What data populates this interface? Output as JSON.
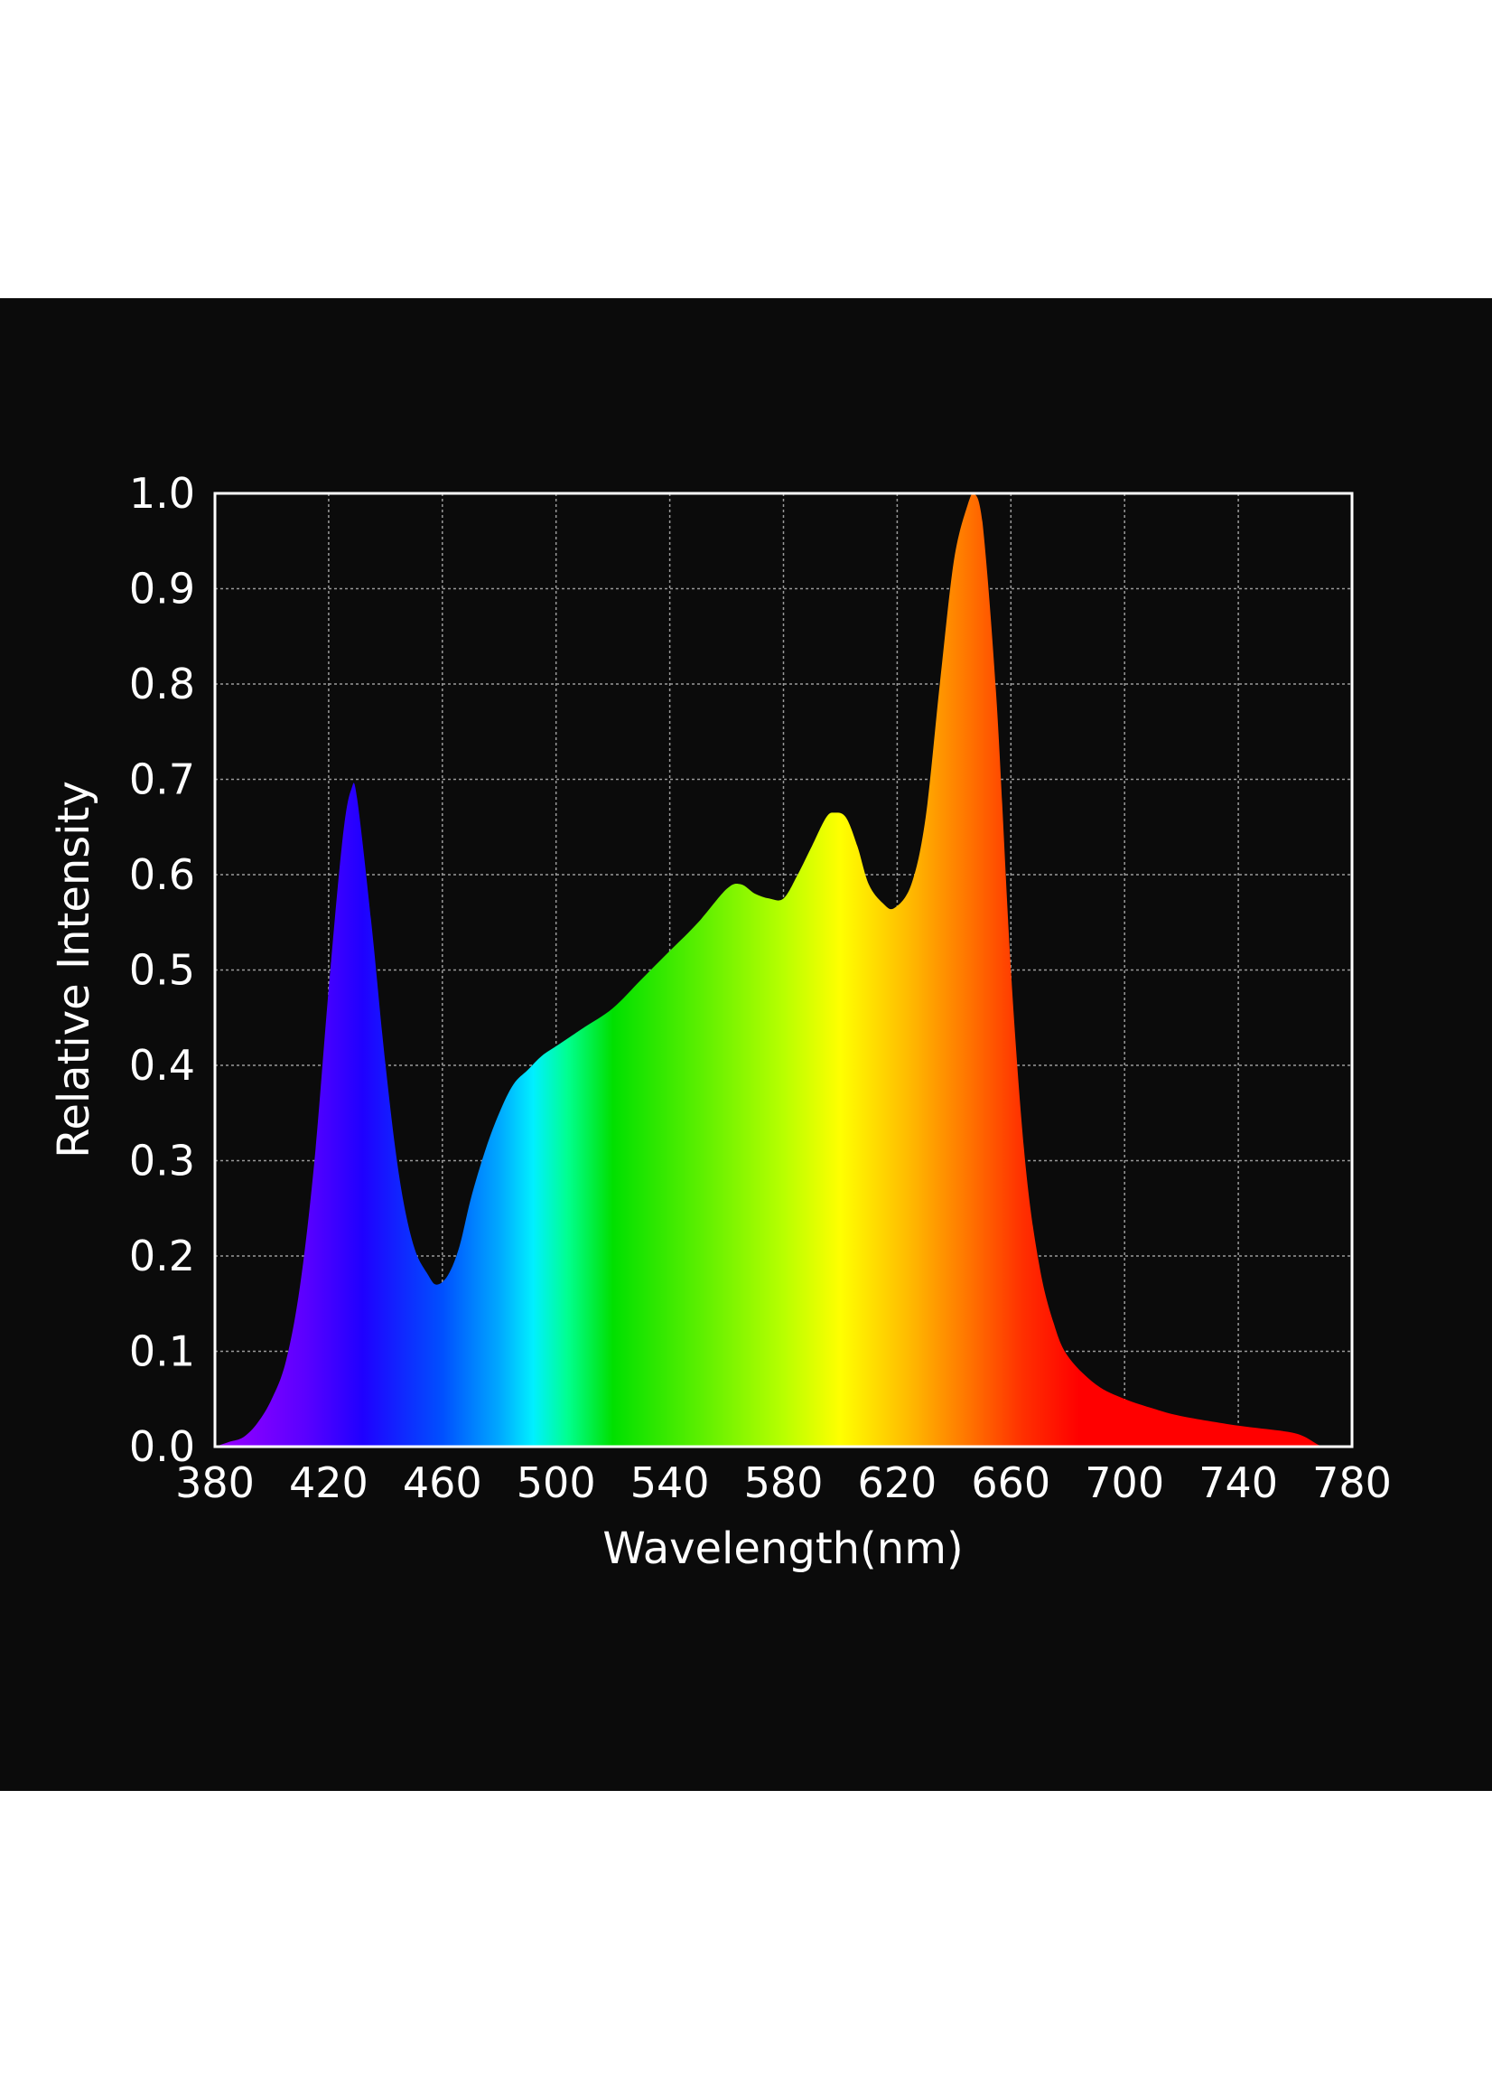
{
  "chart_data": {
    "type": "area",
    "xlabel": "Wavelength(nm)",
    "ylabel": "Relative Intensity",
    "xlim": [
      380,
      780
    ],
    "ylim": [
      0.0,
      1.0
    ],
    "x_ticks": [
      "380",
      "420",
      "460",
      "500",
      "540",
      "580",
      "620",
      "660",
      "700",
      "740",
      "780"
    ],
    "y_ticks": [
      "0.0",
      "0.1",
      "0.2",
      "0.3",
      "0.4",
      "0.5",
      "0.6",
      "0.7",
      "0.8",
      "0.9",
      "1.0"
    ],
    "grid": true,
    "fill": "visible-spectrum gradient",
    "x": [
      380,
      385,
      390,
      395,
      400,
      405,
      410,
      415,
      420,
      425,
      428,
      430,
      435,
      440,
      445,
      450,
      455,
      458,
      462,
      466,
      470,
      475,
      480,
      485,
      490,
      495,
      500,
      505,
      510,
      520,
      530,
      540,
      550,
      560,
      565,
      570,
      575,
      580,
      585,
      590,
      595,
      598,
      602,
      606,
      610,
      615,
      619,
      625,
      630,
      635,
      640,
      645,
      647,
      650,
      655,
      660,
      665,
      670,
      675,
      680,
      690,
      700,
      710,
      720,
      740,
      760,
      770,
      780
    ],
    "y": [
      0.0,
      0.005,
      0.01,
      0.025,
      0.05,
      0.09,
      0.17,
      0.3,
      0.48,
      0.64,
      0.69,
      0.68,
      0.55,
      0.4,
      0.28,
      0.21,
      0.18,
      0.17,
      0.18,
      0.21,
      0.26,
      0.31,
      0.35,
      0.38,
      0.395,
      0.41,
      0.42,
      0.43,
      0.44,
      0.46,
      0.49,
      0.52,
      0.55,
      0.585,
      0.59,
      0.58,
      0.575,
      0.575,
      0.6,
      0.63,
      0.66,
      0.665,
      0.66,
      0.63,
      0.59,
      0.57,
      0.565,
      0.59,
      0.66,
      0.8,
      0.93,
      0.99,
      1.0,
      0.97,
      0.78,
      0.5,
      0.3,
      0.19,
      0.13,
      0.095,
      0.065,
      0.05,
      0.04,
      0.032,
      0.022,
      0.014,
      0.0,
      0.0
    ]
  },
  "colors": {
    "background": "#0b0b0b",
    "page": "#ffffff",
    "text": "#ffffff",
    "grid": "#9a9a9a",
    "frame": "#ffffff"
  }
}
